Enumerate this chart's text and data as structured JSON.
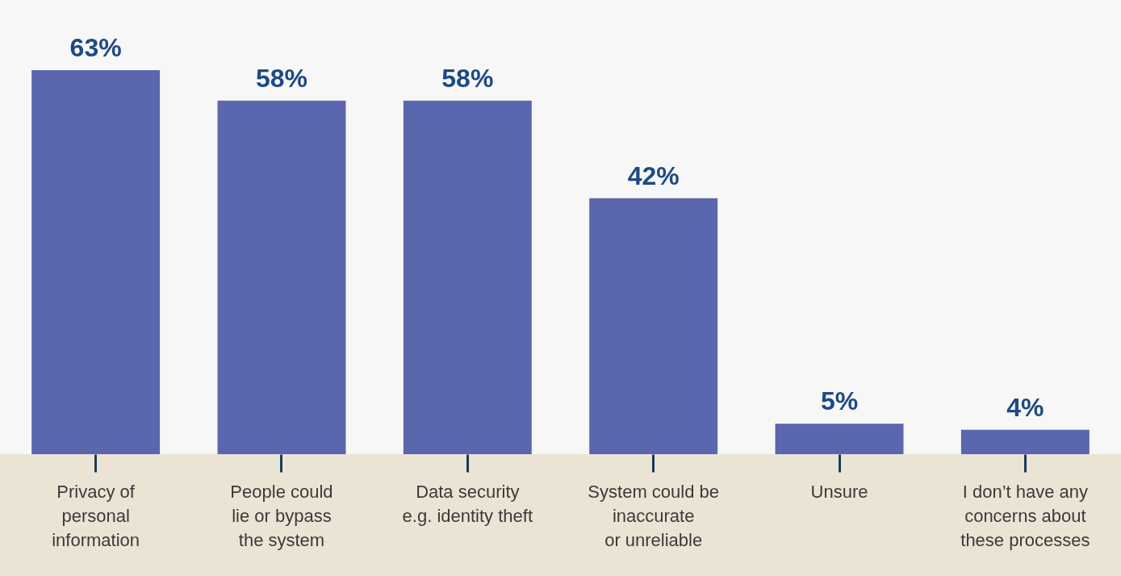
{
  "chart_data": {
    "type": "bar",
    "categories": [
      "Privacy of\npersonal\ninformation",
      "People could\nlie or bypass\nthe system",
      "Data security\ne.g. identity theft",
      "System could be\ninaccurate\nor unreliable",
      "Unsure",
      "I don’t have any\nconcerns about\nthese processes"
    ],
    "values": [
      63,
      58,
      58,
      42,
      5,
      4
    ],
    "value_labels": [
      "63%",
      "58%",
      "58%",
      "42%",
      "5%",
      "4%"
    ],
    "color": "#5a66ad"
  }
}
